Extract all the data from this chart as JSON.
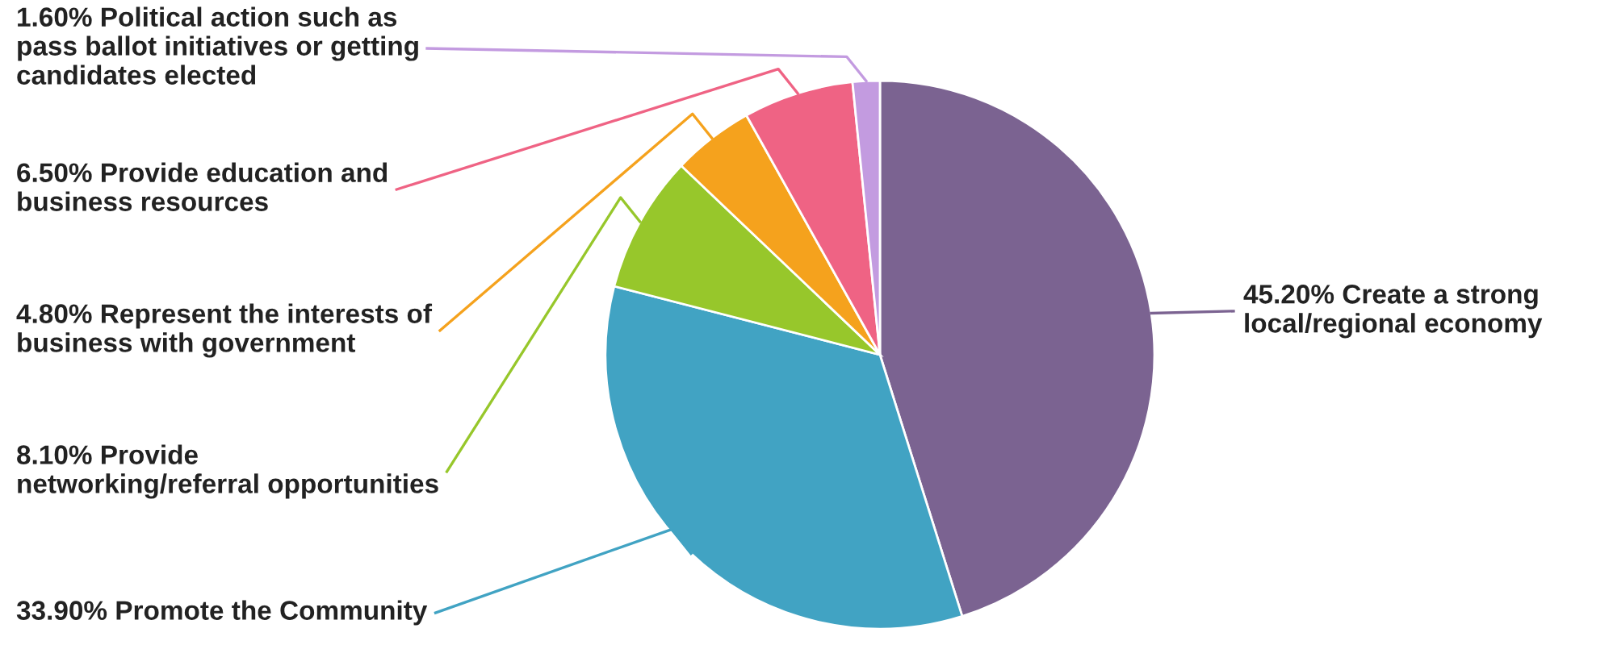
{
  "chart_data": {
    "type": "pie",
    "categories": [
      "Create a strong\nlocal/regional economy",
      "Promote the Community",
      "Provide\nnetworking/referral opportunities",
      "Represent the interests of\nbusiness with government",
      "Provide education and\nbusiness resources",
      "Political action such as\npass ballot initiatives or getting\ncandidates elected"
    ],
    "values": [
      45.2,
      33.9,
      8.1,
      4.8,
      6.5,
      1.6
    ],
    "colors": [
      "#7b6391",
      "#41a3c3",
      "#97c72b",
      "#f5a21d",
      "#ef6384",
      "#c39be0"
    ],
    "value_labels": [
      "45.20%",
      "33.90%",
      "8.10%",
      "4.80%",
      "6.50%",
      "1.60%"
    ],
    "legend": false
  }
}
